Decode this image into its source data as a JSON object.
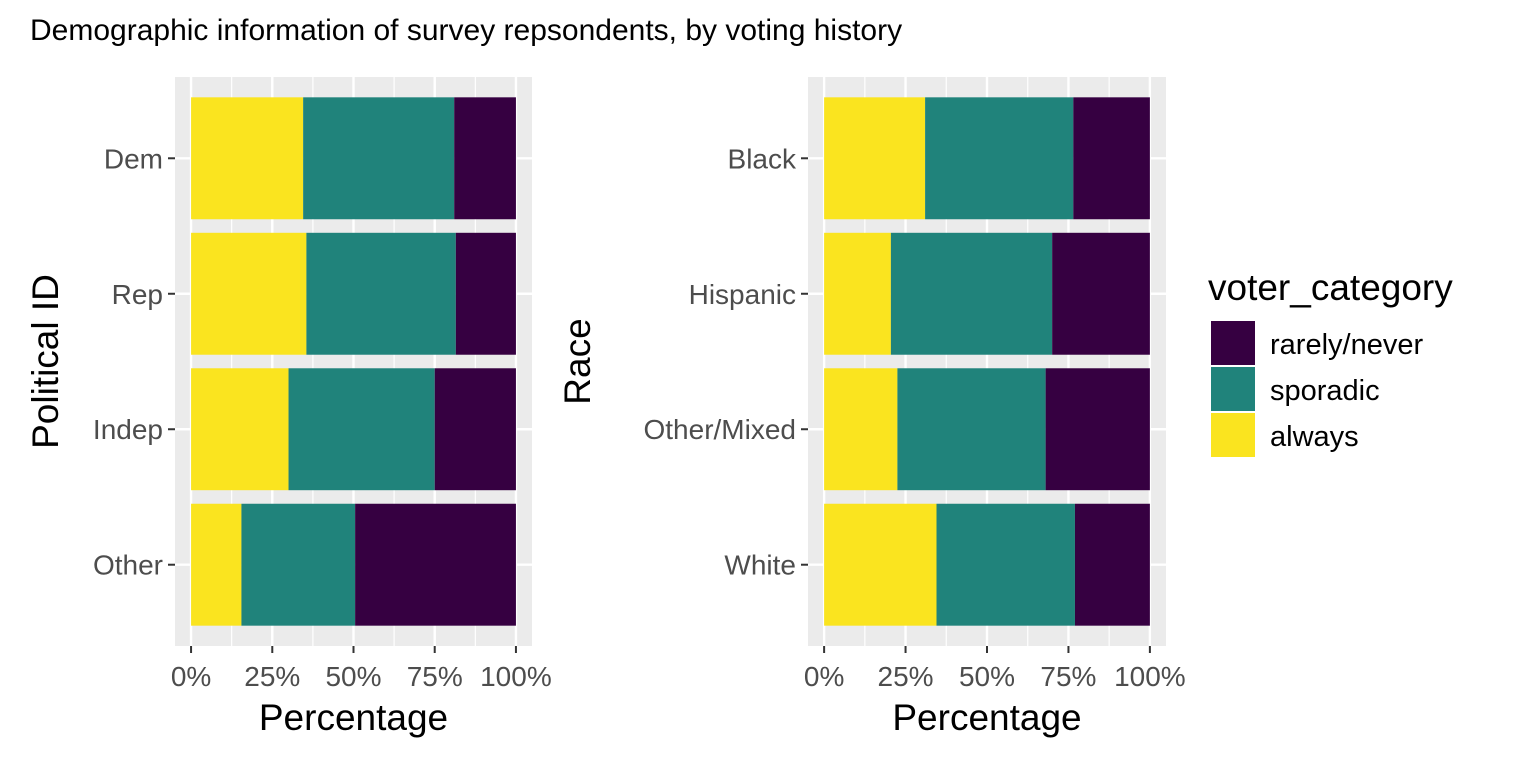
{
  "title": "Demographic information of survey repsondents, by voting history",
  "legend": {
    "title": "voter_category",
    "items": [
      {
        "label": "rarely/never",
        "color": "#360041"
      },
      {
        "label": "sporadic",
        "color": "#20837B"
      },
      {
        "label": "always",
        "color": "#FAE41F"
      }
    ]
  },
  "chart_data": [
    {
      "type": "bar",
      "orientation": "horizontal",
      "stacked": true,
      "xlabel": "Percentage",
      "ylabel": "Political ID",
      "xlim": [
        0,
        100
      ],
      "xticks": [
        "0%",
        "25%",
        "50%",
        "75%",
        "100%"
      ],
      "categories": [
        "Dem",
        "Rep",
        "Indep",
        "Other"
      ],
      "series": [
        {
          "name": "always",
          "values": [
            34.5,
            35.5,
            30,
            15.5
          ]
        },
        {
          "name": "sporadic",
          "values": [
            46.5,
            46,
            45,
            35
          ]
        },
        {
          "name": "rarely/never",
          "values": [
            19,
            18.5,
            25,
            49.5
          ]
        }
      ],
      "grid": true
    },
    {
      "type": "bar",
      "orientation": "horizontal",
      "stacked": true,
      "xlabel": "Percentage",
      "ylabel": "Race",
      "xlim": [
        0,
        100
      ],
      "xticks": [
        "0%",
        "25%",
        "50%",
        "75%",
        "100%"
      ],
      "categories": [
        "Black",
        "Hispanic",
        "Other/Mixed",
        "White"
      ],
      "series": [
        {
          "name": "always",
          "values": [
            31,
            20.5,
            22.5,
            34.5
          ]
        },
        {
          "name": "sporadic",
          "values": [
            45.5,
            49.5,
            45.5,
            42.5
          ]
        },
        {
          "name": "rarely/never",
          "values": [
            23.5,
            30,
            32,
            23
          ]
        }
      ],
      "grid": true
    }
  ]
}
